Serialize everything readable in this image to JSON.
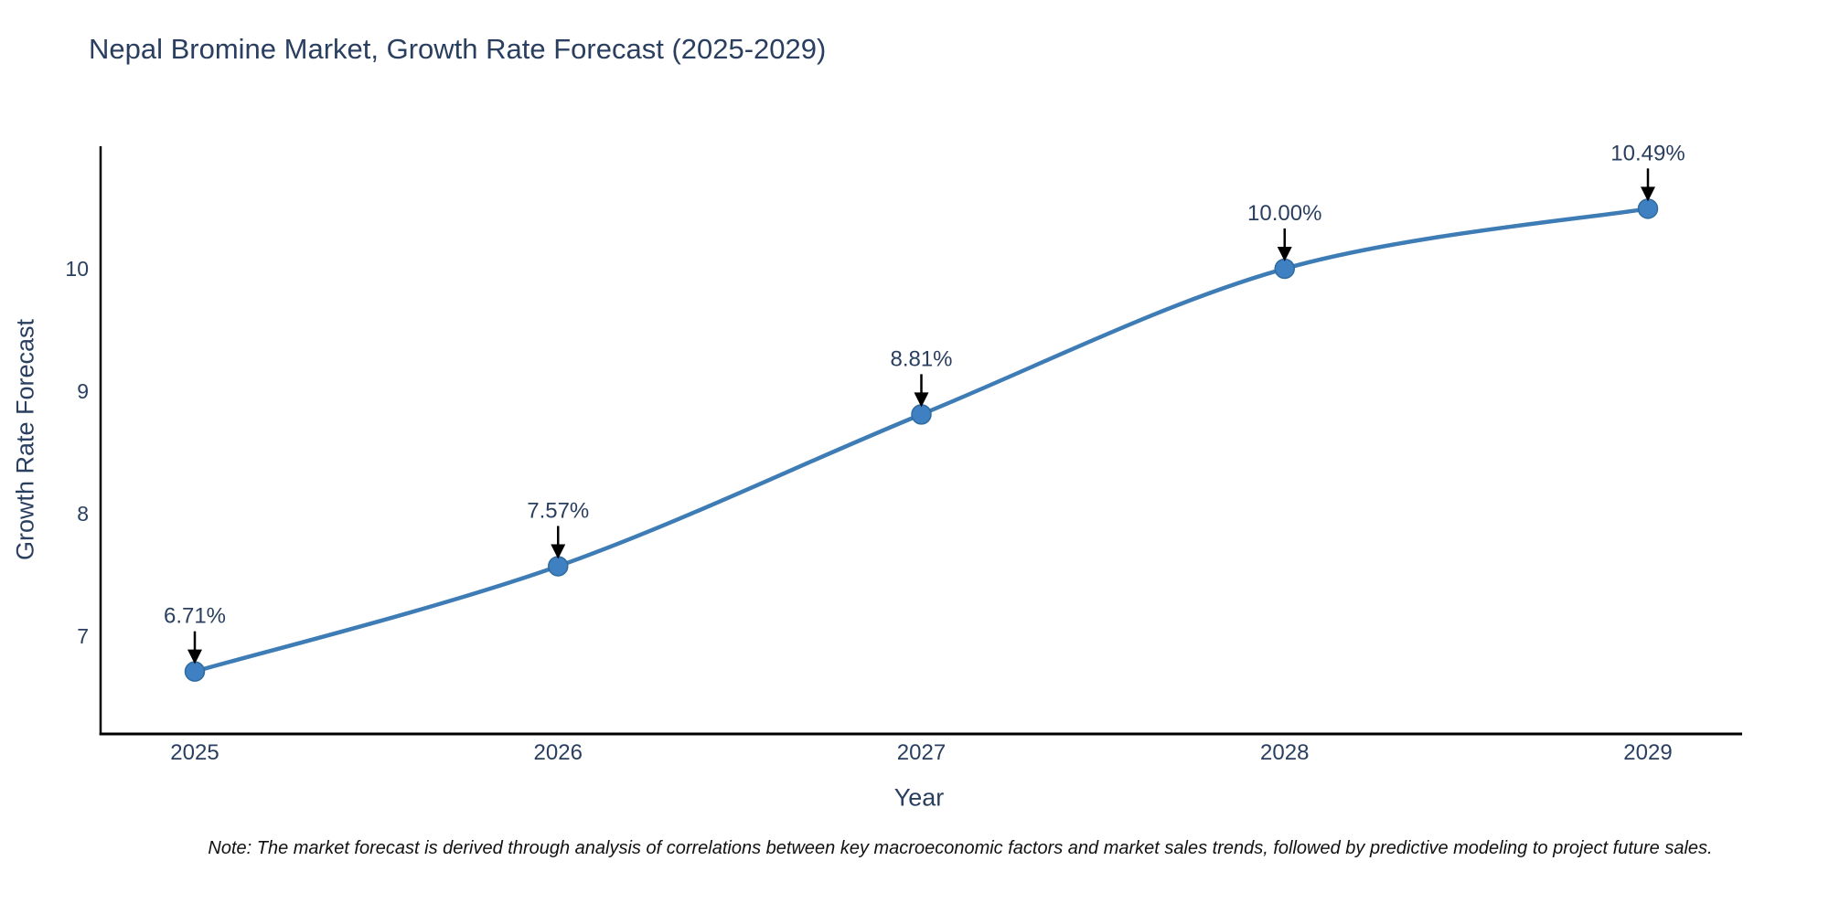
{
  "note": "Note: The market forecast is derived through analysis of correlations between key macroeconomic factors and market sales trends, followed by predictive modeling to project future sales.",
  "chart_data": {
    "type": "line",
    "title": "Nepal Bromine Market, Growth Rate Forecast (2025-2029)",
    "xlabel": "Year",
    "ylabel": "Growth Rate Forecast",
    "x": [
      "2025",
      "2026",
      "2027",
      "2028",
      "2029"
    ],
    "series": [
      {
        "name": "Growth Rate Forecast",
        "values": [
          6.71,
          7.57,
          8.81,
          10.0,
          10.49
        ]
      }
    ],
    "point_labels": [
      "6.71%",
      "7.57%",
      "8.81%",
      "10.00%",
      "10.49%"
    ],
    "yticks": [
      7,
      8,
      9,
      10
    ],
    "ylim": [
      6.2,
      11.0
    ],
    "grid": false,
    "legend": "none",
    "line_shape": "spline",
    "colors": {
      "line": "#3e7cb5",
      "marker": "#3e80c2",
      "marker_edge": "#2f6b9d",
      "axis": "#000000",
      "text": "#2a3f5f",
      "annotation_text": "#2a3f5f",
      "annotation_arrow": "#000000",
      "note_text": "#111111",
      "background": "#ffffff"
    }
  }
}
